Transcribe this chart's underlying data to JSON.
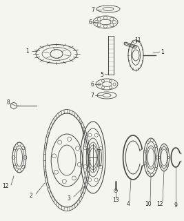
{
  "bg_color": "#f5f5f0",
  "line_color": "#444444",
  "label_color": "#222222",
  "fig_width": 2.67,
  "fig_height": 3.2,
  "dpi": 100
}
